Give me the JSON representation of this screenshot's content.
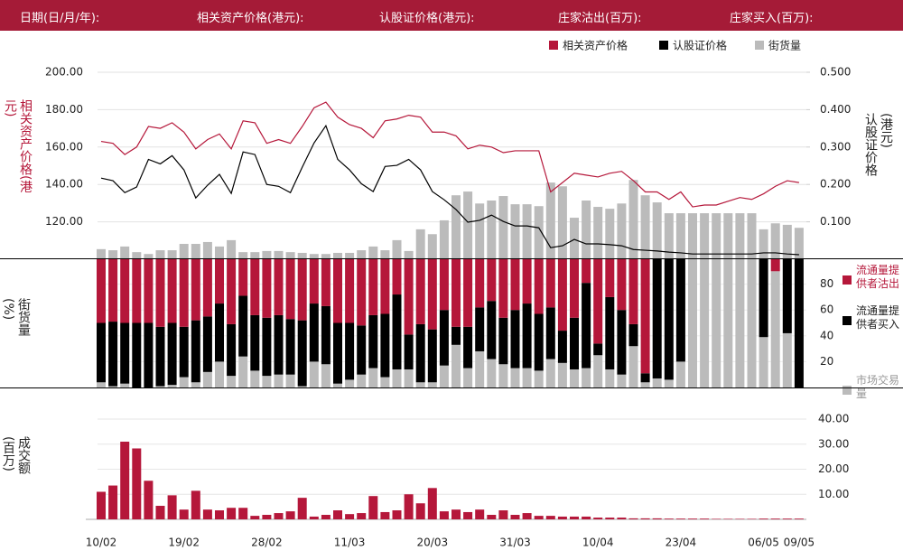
{
  "header": {
    "fields": [
      "日期(日/月/年):",
      "相关资产价格(港元):",
      "认股证价格(港元):",
      "庄家沽出(百万):",
      "庄家买入(百万):"
    ]
  },
  "chart_data": [
    {
      "type": "line",
      "ylabel": "相关资产价格(港元)",
      "y2label": "认股证价格(港元)",
      "ylim": [
        100,
        200
      ],
      "yticks": [
        {
          "value": 120,
          "label": "120.00"
        },
        {
          "value": 140,
          "label": "140.00"
        },
        {
          "value": 160,
          "label": "160.00"
        },
        {
          "value": 180,
          "label": "180.00"
        },
        {
          "value": 200,
          "label": "200.00"
        }
      ],
      "y2lim": [
        0,
        0.5
      ],
      "y2ticks": [
        {
          "value": 0.1,
          "label": "0.100"
        },
        {
          "value": 0.2,
          "label": "0.200"
        },
        {
          "value": 0.3,
          "label": "0.300"
        },
        {
          "value": 0.4,
          "label": "0.400"
        },
        {
          "value": 0.5,
          "label": "0.500"
        }
      ],
      "grid": true,
      "legend": "top-right",
      "series": [
        {
          "name": "相关资产价格",
          "color": "#b5173a",
          "type": "line",
          "values": [
            163,
            162,
            156,
            160,
            171,
            170,
            173,
            168,
            159,
            164,
            167,
            159,
            174,
            173,
            162,
            164,
            162,
            171,
            181,
            184,
            176,
            172,
            170,
            165,
            174,
            175,
            177,
            176,
            168,
            168,
            166,
            159,
            161,
            160,
            157,
            158,
            158,
            158,
            136,
            141,
            146,
            145,
            144,
            146,
            147,
            142,
            136,
            136,
            132,
            136,
            128,
            129,
            129,
            131,
            133,
            132,
            135,
            139,
            142,
            141
          ]
        },
        {
          "name": "认股证价格",
          "color": "#000000",
          "type": "line",
          "axis": "y2",
          "values": [
            0.217,
            0.21,
            0.178,
            0.193,
            0.267,
            0.255,
            0.277,
            0.239,
            0.164,
            0.198,
            0.227,
            0.176,
            0.287,
            0.28,
            0.2,
            0.195,
            0.178,
            0.246,
            0.311,
            0.357,
            0.267,
            0.239,
            0.202,
            0.181,
            0.248,
            0.251,
            0.267,
            0.239,
            0.181,
            0.159,
            0.133,
            0.099,
            0.104,
            0.118,
            0.101,
            0.089,
            0.089,
            0.084,
            0.031,
            0.036,
            0.053,
            0.041,
            0.041,
            0.039,
            0.036,
            0.026,
            0.024,
            0.022,
            0.019,
            0.017,
            0.014,
            0.014,
            0.014,
            0.014,
            0.014,
            0.014,
            0.017,
            0.017,
            0.014,
            0.012
          ]
        },
        {
          "name": "街货量",
          "color": "#bbbbbb",
          "type": "bar",
          "axis": "y2",
          "values": [
            0.027,
            0.024,
            0.034,
            0.019,
            0.014,
            0.024,
            0.024,
            0.041,
            0.041,
            0.046,
            0.034,
            0.051,
            0.019,
            0.019,
            0.022,
            0.022,
            0.019,
            0.017,
            0.014,
            0.014,
            0.017,
            0.017,
            0.024,
            0.034,
            0.024,
            0.051,
            0.022,
            0.08,
            0.067,
            0.104,
            0.171,
            0.181,
            0.149,
            0.157,
            0.169,
            0.147,
            0.147,
            0.142,
            0.205,
            0.195,
            0.111,
            0.157,
            0.14,
            0.135,
            0.149,
            0.212,
            0.171,
            0.152,
            0.123,
            0.123,
            0.123,
            0.123,
            0.123,
            0.123,
            0.123,
            0.123,
            0.08,
            0.096,
            0.092,
            0.084
          ]
        }
      ]
    },
    {
      "type": "stacked_bar",
      "ylabel": "街货量(%)",
      "ylim": [
        0,
        100
      ],
      "yticks": [
        20,
        40,
        60,
        80
      ],
      "y_axis_position": "right",
      "legend": "right",
      "series": [
        {
          "name": "流通量提供者沽出",
          "color": "#b5173a",
          "values": [
            50,
            49,
            50,
            50,
            50,
            53,
            50,
            53,
            48,
            45,
            35,
            51,
            29,
            44,
            46,
            44,
            47,
            48,
            35,
            37,
            50,
            50,
            52,
            44,
            43,
            28,
            59,
            51,
            55,
            40,
            53,
            53,
            38,
            33,
            46,
            40,
            35,
            43,
            38,
            56,
            46,
            19,
            66,
            30,
            40,
            51,
            89,
            0,
            0,
            0,
            0,
            0,
            0,
            0,
            0,
            0,
            0,
            10,
            0,
            0
          ]
        },
        {
          "name": "流通量提供者买入",
          "color": "#000000",
          "values": [
            46,
            50,
            47,
            50,
            50,
            46,
            48,
            39,
            48,
            43,
            45,
            40,
            47,
            43,
            45,
            46,
            43,
            51,
            45,
            45,
            47,
            44,
            38,
            41,
            49,
            58,
            27,
            45,
            41,
            43,
            14,
            32,
            34,
            45,
            36,
            45,
            50,
            44,
            40,
            25,
            40,
            66,
            9,
            56,
            50,
            17,
            7,
            93,
            94,
            80,
            0,
            0,
            0,
            0,
            0,
            0,
            61,
            0,
            58,
            100
          ]
        },
        {
          "name": "市场交易量",
          "color": "#bbbbbb",
          "values": [
            4,
            1,
            3,
            0,
            0,
            1,
            2,
            8,
            4,
            12,
            20,
            9,
            24,
            13,
            9,
            10,
            10,
            1,
            20,
            18,
            3,
            6,
            10,
            15,
            8,
            14,
            14,
            4,
            4,
            17,
            33,
            15,
            28,
            22,
            18,
            15,
            15,
            13,
            22,
            19,
            14,
            15,
            25,
            14,
            10,
            32,
            4,
            7,
            6,
            20,
            100,
            100,
            100,
            100,
            100,
            100,
            39,
            90,
            42,
            0
          ]
        }
      ]
    },
    {
      "type": "bar",
      "ylabel": "成交额(百万)",
      "ylim": [
        0,
        43
      ],
      "yticks": [
        {
          "value": 10,
          "label": "10.00"
        },
        {
          "value": 20,
          "label": "20.00"
        },
        {
          "value": 30,
          "label": "30.00"
        },
        {
          "value": 40,
          "label": "40.00"
        }
      ],
      "grid": true,
      "categories": [
        "10/02",
        null,
        null,
        null,
        null,
        null,
        null,
        "19/02",
        null,
        null,
        null,
        null,
        null,
        null,
        "28/02",
        null,
        null,
        null,
        null,
        null,
        null,
        "11/03",
        null,
        null,
        null,
        null,
        null,
        null,
        "20/03",
        null,
        null,
        null,
        null,
        null,
        null,
        "31/03",
        null,
        null,
        null,
        null,
        null,
        null,
        "10/04",
        null,
        null,
        null,
        null,
        null,
        null,
        "23/04",
        null,
        null,
        null,
        null,
        null,
        null,
        "06/05",
        null,
        null,
        "09/05"
      ],
      "color": "#b5173a",
      "values": [
        11,
        13.5,
        31,
        28.3,
        15.4,
        5.4,
        9.6,
        3.9,
        11.4,
        3.9,
        3.6,
        4.6,
        4.6,
        1.4,
        1.8,
        2.5,
        3.2,
        8.6,
        1.1,
        1.8,
        3.6,
        2.1,
        2.5,
        9.3,
        2.9,
        3.6,
        10,
        6.4,
        12.5,
        3.2,
        3.9,
        2.9,
        3.9,
        1.8,
        3.6,
        1.8,
        2.5,
        1.4,
        1.4,
        1.1,
        1.1,
        1.1,
        0.7,
        0.7,
        0.7,
        0.4,
        0.4,
        0.4,
        0.3,
        0.3,
        0.3,
        0.3,
        0.2,
        0.2,
        0.2,
        0.2,
        0.3,
        0.3,
        0.3,
        0.3
      ]
    }
  ]
}
